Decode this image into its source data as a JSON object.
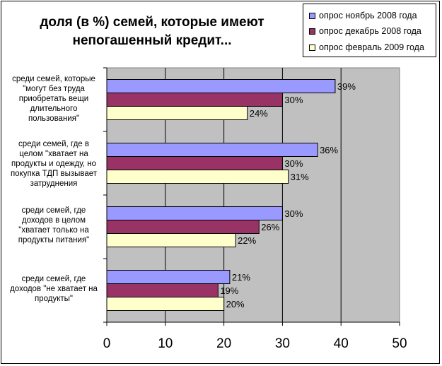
{
  "chart_data": {
    "type": "bar",
    "orientation": "horizontal",
    "title": "доля (в %) семей, которые имеют\nнепогашенный кредит...",
    "categories": [
      "среди семей, которые\n\"могут без труда\nприобретать вещи\nдлительного\nпользования\"",
      "среди семей, где  в\nцелом \"хватает на\nпродукты и одежду, но\nпокупка ТДП вызывает\nзатруднения",
      "среди семей, где\nдоходов в целом\n\"хватает только на\nпродукты питания\"",
      "среди семей, где\nдоходов \"не хватает на\nпродукты\""
    ],
    "series": [
      {
        "name": "опрос ноябрь 2008 года",
        "color": "#9999FF",
        "values": [
          39,
          36,
          30,
          21
        ],
        "labels": [
          "39%",
          "36%",
          "30%",
          "21%"
        ]
      },
      {
        "name": "опрос декабрь 2008 года",
        "color": "#993366",
        "values": [
          30,
          30,
          26,
          19
        ],
        "labels": [
          "30%",
          "30%",
          "26%",
          "19%"
        ]
      },
      {
        "name": "опрос февраль 2009 года",
        "color": "#FFFFCC",
        "values": [
          24,
          31,
          22,
          20
        ],
        "labels": [
          "24%",
          "31%",
          "22%",
          "20%"
        ]
      }
    ],
    "xlim": [
      0,
      50
    ],
    "xticks": [
      "0",
      "10",
      "20",
      "30",
      "40",
      "50"
    ],
    "legend_position": "top-right",
    "grid": true,
    "plot_background": "#C0C0C0"
  }
}
